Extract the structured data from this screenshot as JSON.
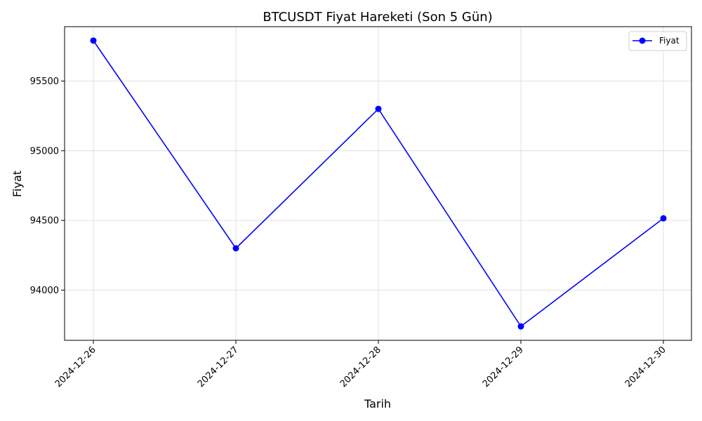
{
  "chart_data": {
    "type": "line",
    "title": "BTCUSDT Fiyat Hareketi (Son 5 Gün)",
    "xlabel": "Tarih",
    "ylabel": "Fiyat",
    "categories": [
      "2024-12-26",
      "2024-12-27",
      "2024-12-28",
      "2024-12-29",
      "2024-12-30"
    ],
    "series": [
      {
        "name": "Fiyat",
        "values": [
          95790,
          94300,
          95300,
          93740,
          94515
        ],
        "color": "#0000ff"
      }
    ],
    "y_ticks": [
      94000,
      94500,
      95000,
      95500
    ],
    "ylim": [
      93640,
      95890
    ],
    "grid": true,
    "legend": "top-right",
    "x_tick_rotation": 45
  }
}
